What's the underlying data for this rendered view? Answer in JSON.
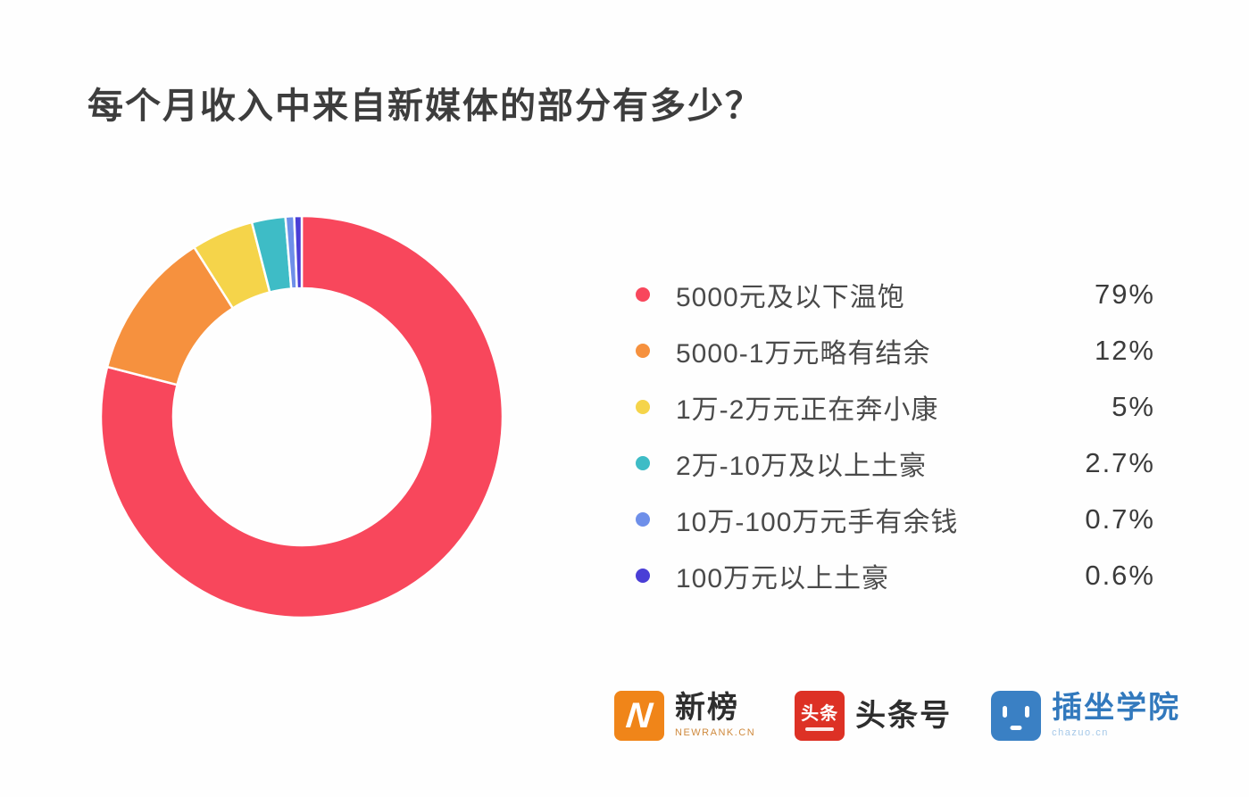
{
  "title": "每个月收入中来自新媒体的部分有多少？",
  "chart_data": {
    "type": "pie",
    "subtype": "donut",
    "title": "每个月收入中来自新媒体的部分有多少？",
    "categories": [
      "5000元及以下温饱",
      "5000-1万元略有结余",
      "1万-2万元正在奔小康",
      "2万-10万及以上土豪",
      "10万-100万元手有余钱",
      "100万元以上土豪"
    ],
    "values": [
      79,
      12,
      5,
      2.7,
      0.7,
      0.6
    ],
    "value_labels": [
      "79%",
      "12%",
      "5%",
      "2.7%",
      "0.7%",
      "0.6%"
    ],
    "colors": [
      "#f8475c",
      "#f6913e",
      "#f5d44a",
      "#3ebcc6",
      "#6e8fe9",
      "#4a3ed6"
    ],
    "start_angle_deg": -90,
    "direction": "clockwise",
    "inner_radius_ratio": 0.64,
    "legend_position": "right",
    "segment_gap_stroke": "#ffffff"
  },
  "footer": {
    "logos": [
      {
        "id": "newrank",
        "glyph": "N",
        "name": "新榜",
        "subtext": "NEWRANK.CN",
        "color": "#f08519"
      },
      {
        "id": "toutiao",
        "badge": "头条",
        "name": "头条号",
        "color": "#dd3125"
      },
      {
        "id": "chazuo",
        "name": "插坐学院",
        "subtext": "chazuo.cn",
        "color": "#3a80c4"
      }
    ]
  }
}
